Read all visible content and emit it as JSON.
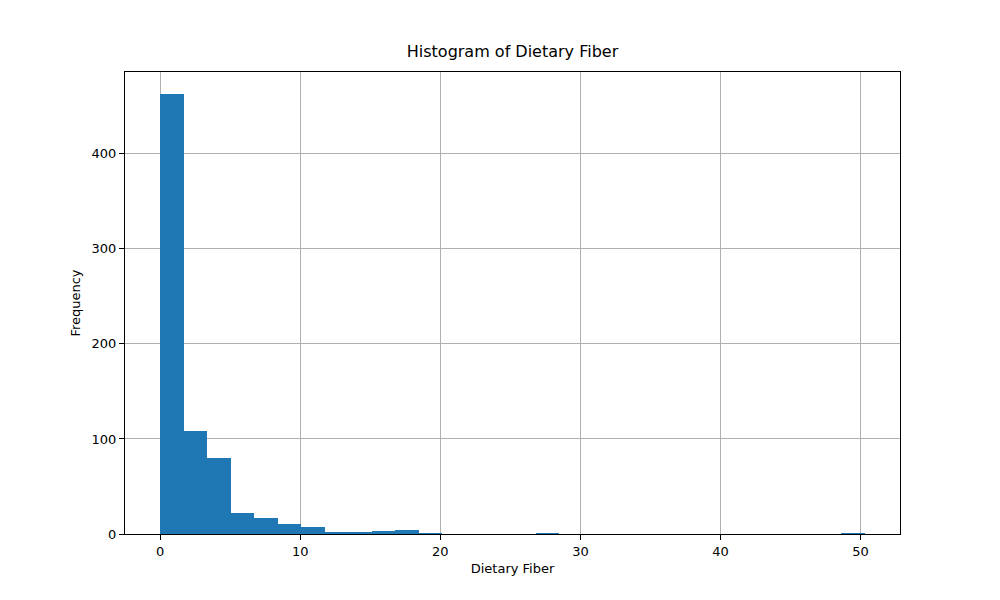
{
  "chart_data": {
    "type": "histogram",
    "title": "Histogram of Dietary Fiber",
    "x_label": "Dietary Fiber",
    "y_label": "Frequency",
    "bins": [
      0,
      1.677,
      3.353,
      5.03,
      6.707,
      8.383,
      10.06,
      11.737,
      13.413,
      15.09,
      16.767,
      18.443,
      20.12,
      21.797,
      23.473,
      25.15,
      26.827,
      28.503,
      30.18,
      31.857,
      33.533,
      35.21,
      36.887,
      38.563,
      40.24,
      41.917,
      43.593,
      45.27,
      46.947,
      48.623,
      50.3
    ],
    "values": [
      463,
      108,
      80,
      22,
      17,
      11,
      7,
      2,
      2,
      3,
      4,
      1,
      0,
      0,
      0,
      0,
      1,
      0,
      0,
      0,
      0,
      0,
      0,
      0,
      0,
      0,
      0,
      0,
      0,
      1
    ],
    "color": "#1f77b4",
    "xlim": [
      -2.515,
      52.815
    ],
    "xticks": [
      0,
      10,
      20,
      30,
      40,
      50
    ],
    "ylim": [
      0,
      486
    ],
    "yticks": [
      0,
      100,
      200,
      300,
      400
    ],
    "grid": true
  }
}
